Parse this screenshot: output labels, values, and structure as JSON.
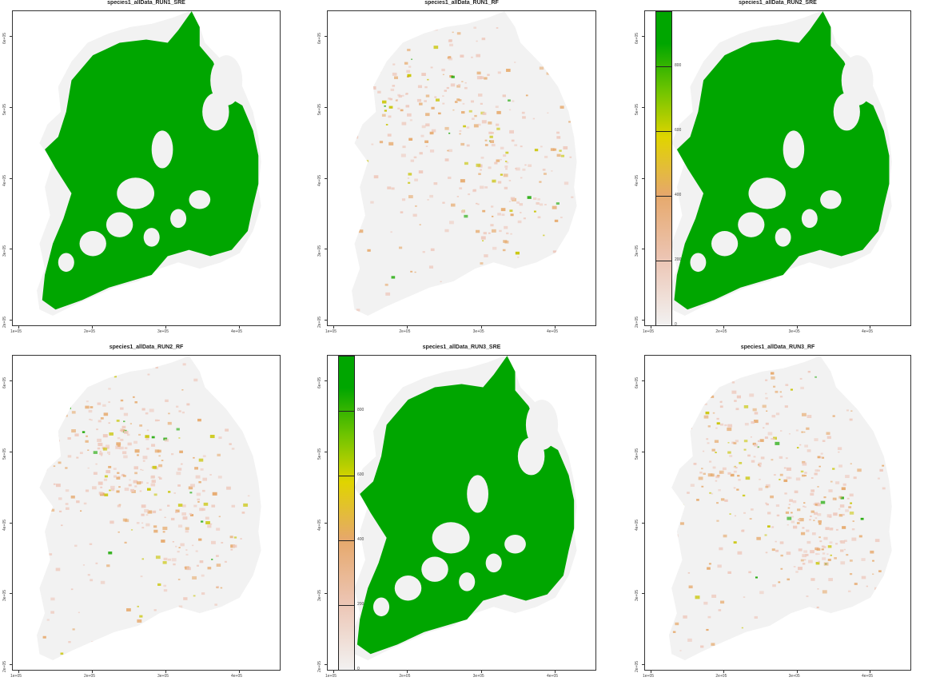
{
  "figure": {
    "panels": [
      {
        "title": "species1_allData_RUN1_SRE",
        "style": "sre",
        "legend": false
      },
      {
        "title": "species1_allData_RUN1_RF",
        "style": "rf",
        "legend": false,
        "density": 0.55
      },
      {
        "title": "species1_allData_RUN2_SRE",
        "style": "sre",
        "legend": true
      },
      {
        "title": "species1_allData_RUN2_RF",
        "style": "rf",
        "legend": false,
        "density": 0.6
      },
      {
        "title": "species1_allData_RUN3_SRE",
        "style": "sre",
        "legend": true
      },
      {
        "title": "species1_allData_RUN3_RF",
        "style": "rf",
        "legend": false,
        "density": 0.62
      }
    ],
    "x_ticks": [
      "1e+05",
      "2e+05",
      "3e+05",
      "4e+05"
    ],
    "y_ticks": [
      "2e+05",
      "3e+05",
      "4e+05",
      "5e+05",
      "6e+05"
    ],
    "legend": {
      "labels": [
        "0",
        "200",
        "400",
        "600",
        "800"
      ],
      "colors": [
        "#f2f2f2",
        "#ecc4b2",
        "#e6a86a",
        "#e0d400",
        "#6fc400",
        "#00a600"
      ]
    },
    "colors": {
      "sre_fill": "#00a600",
      "background_land": "#f2f2f2",
      "rf_low": "#eec9bd",
      "rf_mid": "#e6a86a",
      "rf_high": "#c8c400",
      "rf_top": "#1aa800"
    }
  }
}
